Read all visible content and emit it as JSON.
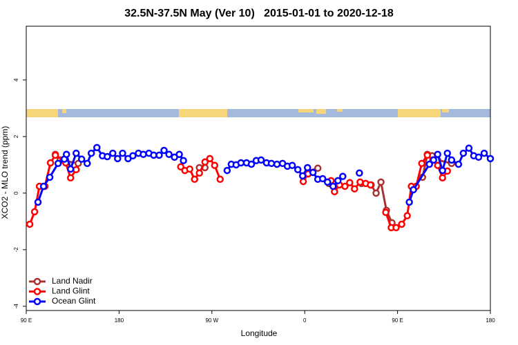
{
  "chart_data": {
    "type": "line",
    "title": "32.5N-37.5N May (Ver 10)   2015-01-01 to 2020-12-18",
    "x_label": "Longitude",
    "y_label": "XCO2 - MLO trend (ppm)",
    "xlim": [
      90,
      540
    ],
    "ylim": [
      -4.15,
      5.9
    ],
    "xticks": [
      {
        "value": 90,
        "label": "90 E"
      },
      180,
      {
        "value": 270,
        "label": "90 W"
      },
      {
        "value": 360,
        "label": "0"
      },
      {
        "value": 450,
        "label": "90 E"
      },
      {
        "value": 540,
        "label": "180"
      }
    ],
    "yticks": [
      -4,
      -2,
      0,
      2,
      4
    ],
    "grid": false,
    "legend": "bottom-left",
    "series": [
      {
        "name": "Land Nadir",
        "color": "#a83232",
        "x": [
          118.2,
          122.9,
          140.4,
          null,
          257.9,
          263.3,
          null,
          363.3,
          372.7,
          null,
          383.5,
          null,
          415,
          424.4,
          429.2,
          433.9,
          439.2,
          444.6,
          null,
          474.2,
          478.9,
          483.5,
          488.9,
          502.4
        ],
        "values": [
          1.37,
          1.17,
          1.05,
          null,
          0.9,
          0.9,
          null,
          0.78,
          0.88,
          null,
          0.34,
          null,
          0.34,
          0.29,
          0,
          0.39,
          -0.61,
          -1.05,
          null,
          0.56,
          1.37,
          1.32,
          1.17,
          1.05
        ]
      },
      {
        "name": "Land Glint",
        "color": "#ff0000",
        "x": [
          93.4,
          98.1,
          102.8,
          108.1,
          113.5,
          118.2,
          125.6,
          128.3,
          133,
          138.4,
          null,
          239.8,
          243.8,
          248.5,
          253.2,
          257.9,
          263.3,
          268,
          272.7,
          278,
          null,
          358.6,
          363.3,
          null,
          385.5,
          388.9,
          393.6,
          399,
          403.6,
          408.3,
          413.7,
          419.1,
          423.8,
          null,
          438.6,
          443.9,
          448.6,
          454,
          459.4,
          463.4,
          468.1,
          473.5,
          478.9,
          484.2,
          488.9,
          493.6,
          498.3
        ],
        "values": [
          -1.1,
          -0.66,
          0.24,
          0.24,
          1.07,
          1.34,
          1.17,
          1.07,
          0.54,
          0.83,
          null,
          0.93,
          0.8,
          0.85,
          0.49,
          0.71,
          1.1,
          1.22,
          0.98,
          0.49,
          null,
          0.41,
          0.68,
          null,
          0.44,
          0.05,
          0.29,
          0.24,
          0.37,
          0.15,
          0.39,
          0.34,
          0.29,
          null,
          -0.68,
          -1.22,
          -1.22,
          -1.1,
          -0.8,
          0.24,
          0.24,
          1.05,
          1.34,
          1.17,
          0.98,
          0.54,
          0.78
        ]
      },
      {
        "name": "Ocean Glint",
        "color": "#0000ff",
        "x": [
          101.4,
          106.8,
          112.8,
          120.9,
          126.9,
          129,
          133,
          138.4,
          143.7,
          149.1,
          153.1,
          158.5,
          163.9,
          168.6,
          173.9,
          178.6,
          183.4,
          188.7,
          193.4,
          198.8,
          203.5,
          208.9,
          213.6,
          218.9,
          223.6,
          228.4,
          233.7,
          238.4,
          242.4,
          null,
          284.8,
          288.8,
          293.5,
          298.2,
          303.6,
          308.3,
          313,
          317.7,
          323,
          327.7,
          333.1,
          338.5,
          343.2,
          347.9,
          353.3,
          358,
          362.7,
          368,
          372.7,
          377.4,
          382.1,
          387.5,
          392.2,
          396.9,
          null,
          413,
          null,
          461.4,
          465.4,
          480.9,
          484.9,
          488.9,
          493.6,
          498.3,
          502.4,
          509.1,
          513.8,
          519.2,
          523.9,
          528.6,
          534,
          540
        ],
        "values": [
          -0.32,
          0.24,
          0.56,
          1.05,
          1.2,
          1.37,
          0.85,
          1.41,
          1.2,
          1.05,
          1.41,
          1.61,
          1.32,
          1.29,
          1.41,
          1.22,
          1.41,
          1.22,
          1.32,
          1.41,
          1.37,
          1.41,
          1.34,
          1.34,
          1.51,
          1.37,
          1.27,
          1.37,
          1.15,
          null,
          0.8,
          1.02,
          1,
          1.07,
          1.07,
          1.02,
          1.15,
          1.17,
          1.07,
          1.05,
          1.02,
          1.05,
          0.95,
          0.98,
          0.83,
          0.61,
          0.9,
          0.73,
          0.49,
          0.51,
          0.39,
          0.24,
          0.44,
          0.59,
          null,
          0.71,
          null,
          -0.32,
          0.12,
          1.02,
          1.17,
          1.37,
          0.8,
          1.41,
          1.17,
          1.02,
          1.41,
          1.59,
          1.32,
          1.27,
          1.41,
          1.22
        ]
      }
    ]
  }
}
